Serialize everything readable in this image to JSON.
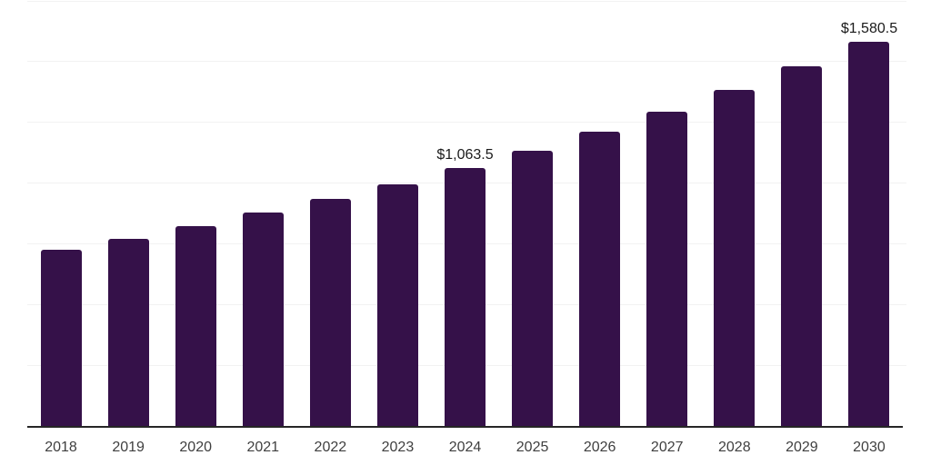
{
  "chart_data": {
    "type": "bar",
    "title": "",
    "xlabel": "",
    "ylabel": "",
    "categories": [
      "2018",
      "2019",
      "2020",
      "2021",
      "2022",
      "2023",
      "2024",
      "2025",
      "2026",
      "2027",
      "2028",
      "2029",
      "2030"
    ],
    "values": [
      724.0,
      772.0,
      823.5,
      877.0,
      935.5,
      995.5,
      1063.5,
      1134.5,
      1211.0,
      1294.5,
      1383.0,
      1479.0,
      1580.5
    ],
    "data_labels": {
      "2024": "$1,063.5",
      "2030": "$1,580.5"
    },
    "ylim": [
      0,
      1750
    ],
    "gridline_interval": 250,
    "grid": true,
    "legend": "none",
    "value_prefix": "$",
    "colors": {
      "bar": "#351149",
      "gridline": "#f2f2f2",
      "axis": "#262626",
      "tick_label": "#3f3f3f",
      "data_label": "#1a1a1a",
      "background": "#ffffff"
    }
  }
}
